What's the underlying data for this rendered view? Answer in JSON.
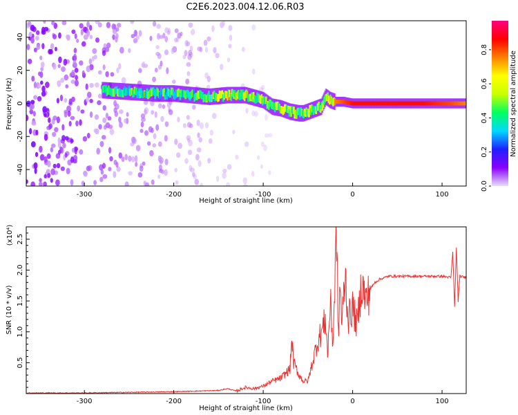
{
  "title": "C2E6.2023.004.12.06.R03",
  "chart_data": [
    {
      "type": "heatmap",
      "xlabel": "Height of straight line (km)",
      "ylabel": "Frequency (Hz)",
      "xlim": [
        -365,
        127
      ],
      "ylim": [
        -50,
        50
      ],
      "xticks": [
        -300,
        -200,
        -100,
        0,
        100
      ],
      "yticks": [
        -40,
        -20,
        0,
        20,
        40
      ],
      "colorbar": {
        "label": "Normalized spectral amplitude",
        "range": [
          0.0,
          0.97
        ],
        "ticks": [
          0.0,
          0.2,
          0.4,
          0.6,
          0.8
        ]
      },
      "ridge": {
        "x": [
          -280,
          -250,
          -220,
          -200,
          -180,
          -160,
          -140,
          -120,
          -100,
          -90,
          -80,
          -70,
          -60,
          -55,
          -50,
          -45,
          -40,
          -35,
          -30,
          -25,
          -20,
          -10,
          0,
          20,
          50,
          80,
          110,
          127
        ],
        "freq": [
          8,
          7,
          6,
          6,
          5,
          4,
          5,
          5,
          2,
          -2,
          -3,
          -5,
          -6,
          -6,
          -5,
          -4,
          -3,
          -2,
          4,
          2,
          1,
          1,
          0,
          0,
          0,
          0,
          0,
          0
        ],
        "amplitude": [
          0.45,
          0.45,
          0.45,
          0.45,
          0.45,
          0.5,
          0.6,
          0.6,
          0.5,
          0.55,
          0.55,
          0.6,
          0.55,
          0.5,
          0.55,
          0.55,
          0.55,
          0.6,
          0.55,
          0.7,
          0.75,
          0.8,
          0.85,
          0.85,
          0.85,
          0.85,
          0.8,
          0.75
        ]
      },
      "noise_region_x": [
        -365,
        -150
      ]
    },
    {
      "type": "line",
      "xlabel": "Height of straight line (km)",
      "ylabel": "SNR (10 * v/v)",
      "y_multiplier": "(x10⁴)",
      "xlim": [
        -365,
        127
      ],
      "ylim": [
        0,
        2.7
      ],
      "xticks": [
        -300,
        -200,
        -100,
        0,
        100
      ],
      "yticks": [
        0.5,
        1.0,
        1.5,
        2.0,
        2.5
      ],
      "ytick_labels": [
        "0.5",
        "1.0",
        "1.5",
        "2.0",
        "2.5"
      ],
      "series": [
        {
          "color": "#ee3030",
          "x": [
            -365,
            -300,
            -250,
            -200,
            -150,
            -140,
            -130,
            -120,
            -110,
            -100,
            -90,
            -80,
            -70,
            -68,
            -66,
            -60,
            -55,
            -50,
            -45,
            -40,
            -35,
            -30,
            -28,
            -25,
            -22,
            -20,
            -18,
            -16,
            -14,
            -12,
            -10,
            -8,
            -5,
            0,
            5,
            10,
            15,
            20,
            25,
            30,
            40,
            60,
            80,
            100,
            110,
            112,
            114,
            116,
            118,
            120,
            127
          ],
          "y": [
            0.01,
            0.01,
            0.02,
            0.03,
            0.05,
            0.08,
            0.04,
            0.1,
            0.08,
            0.12,
            0.2,
            0.25,
            0.4,
            0.9,
            0.5,
            0.3,
            0.2,
            0.2,
            0.5,
            0.8,
            1.0,
            1.2,
            0.6,
            1.5,
            0.8,
            1.7,
            2.7,
            0.9,
            1.8,
            1.1,
            1.6,
            1.9,
            1.2,
            1.4,
            1.1,
            1.8,
            1.5,
            1.7,
            1.8,
            1.85,
            1.9,
            1.9,
            1.9,
            1.9,
            1.88,
            2.3,
            1.4,
            2.35,
            1.5,
            1.9,
            1.88
          ]
        }
      ]
    }
  ],
  "colorbar_colors": [
    "#e8e0f8",
    "#8a00ff",
    "#2020ff",
    "#00d8ff",
    "#00ff60",
    "#c8ff00",
    "#ffff00",
    "#ff8000",
    "#ff0000",
    "#ff0080"
  ]
}
